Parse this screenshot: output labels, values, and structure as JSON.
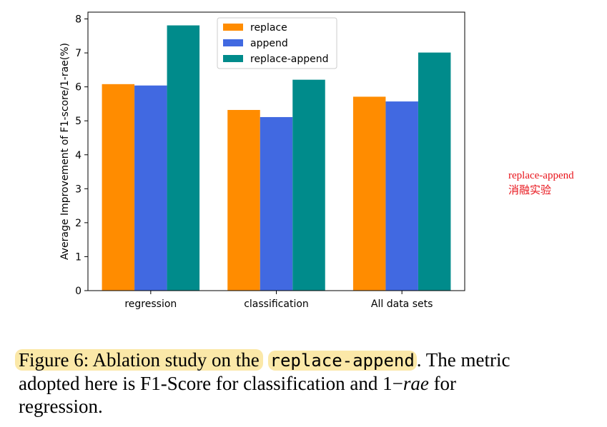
{
  "chart_data": {
    "type": "bar",
    "categories": [
      "regression",
      "classification",
      "All data sets"
    ],
    "series": [
      {
        "name": "replace",
        "values": [
          6.08,
          5.32,
          5.71
        ],
        "color": "#ff8c00"
      },
      {
        "name": "append",
        "values": [
          6.04,
          5.11,
          5.57
        ],
        "color": "#4169e1"
      },
      {
        "name": "replace-append",
        "values": [
          7.81,
          6.21,
          7.01
        ],
        "color": "#008b8b"
      }
    ],
    "title": "",
    "xlabel": "",
    "ylabel": "Average Improvement of F1-score/1-rae(%)",
    "ylim": [
      0,
      8.2
    ],
    "yticks": [
      "0",
      "1",
      "2",
      "3",
      "4",
      "5",
      "6",
      "7",
      "8"
    ],
    "legend": "top-center",
    "grid": false
  },
  "annotation": {
    "line1": "replace-append",
    "line2": "消融实验",
    "color": "#e8141b"
  },
  "caption": {
    "label": "Figure 6: Ablation study on the",
    "code": "replace-append",
    "rest1": ". The metric adopted here is F1-Score for classification and 1−",
    "math": "rae",
    "rest2": " for regression.",
    "highlight_color": "#fbe8a8"
  }
}
